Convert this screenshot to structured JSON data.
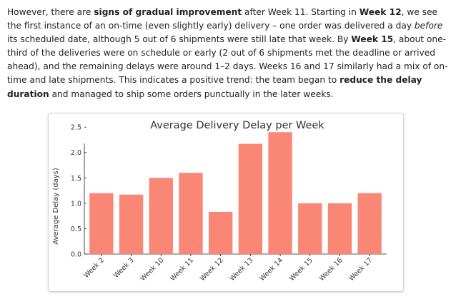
{
  "text": {
    "p1": "However, there are ",
    "b1": "signs of gradual improvement",
    "p2": " after Week 11. Starting in ",
    "b2": "Week 12",
    "p3": ", we see the first instance of an on-time (even slightly early) delivery – one order was delivered a day ",
    "i1": "before",
    "p4": " its scheduled date, although 5 out of 6 shipments were still late that week. By ",
    "b3": "Week 15",
    "p5": ", about one-third of the deliveries were on schedule or early (2 out of 6 shipments met the deadline or arrived ahead), and the remaining delays were around 1–2 days. Weeks 16 and 17 similarly had a mix of on-time and late shipments. This indicates a positive trend: the team began to ",
    "b4": "reduce the delay duration",
    "p6": " and managed to ship some orders punctually in the later weeks."
  },
  "chart_data": {
    "type": "bar",
    "title": "Average Delivery Delay per Week",
    "xlabel": "",
    "ylabel": "Average Delay (days)",
    "categories": [
      "Week 2",
      "Week 3",
      "Week 10",
      "Week 11",
      "Week 12",
      "Week 13",
      "Week 14",
      "Week 15",
      "Week 16",
      "Week 17"
    ],
    "values": [
      1.2,
      1.17,
      1.5,
      1.6,
      0.83,
      2.17,
      2.4,
      1.0,
      1.0,
      1.2
    ],
    "ylim": [
      0,
      2.6
    ],
    "yticks": [
      "0.0",
      "0.5",
      "1.0",
      "1.5",
      "2.0",
      "2.5"
    ],
    "bar_color": "#fa8775",
    "grid": false
  }
}
